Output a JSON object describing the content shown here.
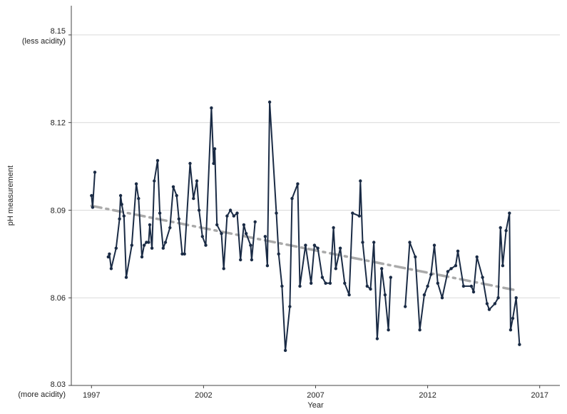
{
  "chart_data": {
    "type": "line",
    "xlabel": "Year",
    "ylabel": "pH measurement",
    "xlim": [
      1996.1,
      2017.9
    ],
    "ylim": [
      8.03,
      8.16
    ],
    "x_ticks": [
      1997,
      2002,
      2007,
      2012,
      2017
    ],
    "y_ticks": [
      8.03,
      8.06,
      8.09,
      8.12,
      8.15
    ],
    "y_tick_labels": [
      "8.03",
      "8.06",
      "8.09",
      "8.12",
      "8.15"
    ],
    "y_tick_sublabels": {
      "8.15": "(less acidity)",
      "8.03": "(more acidity)"
    },
    "grid": "horizontal",
    "colors": {
      "series": "#1a2b45",
      "trend": "#aaaaaa"
    },
    "series": [
      {
        "points": [
          [
            1997.0,
            8.095
          ],
          [
            1997.05,
            8.091
          ],
          [
            1997.15,
            8.103
          ],
          [
            null,
            null
          ],
          [
            1997.75,
            8.074
          ],
          [
            1997.8,
            8.075
          ],
          [
            1997.88,
            8.07
          ],
          [
            1998.1,
            8.077
          ],
          [
            1998.25,
            8.087
          ],
          [
            1998.3,
            8.095
          ],
          [
            1998.35,
            8.092
          ],
          [
            1998.45,
            8.088
          ],
          [
            1998.55,
            8.067
          ],
          [
            1998.8,
            8.078
          ],
          [
            1999.0,
            8.099
          ],
          [
            1999.1,
            8.094
          ],
          [
            1999.25,
            8.074
          ],
          [
            1999.35,
            8.078
          ],
          [
            1999.45,
            8.079
          ],
          [
            1999.55,
            8.079
          ],
          [
            1999.6,
            8.085
          ],
          [
            1999.7,
            8.077
          ],
          [
            1999.8,
            8.1
          ],
          [
            1999.95,
            8.107
          ],
          [
            2000.05,
            8.089
          ],
          [
            2000.2,
            8.077
          ],
          [
            2000.3,
            8.079
          ],
          [
            2000.5,
            8.084
          ],
          [
            2000.65,
            8.098
          ],
          [
            2000.8,
            8.095
          ],
          [
            2000.9,
            8.087
          ],
          [
            2001.05,
            8.075
          ],
          [
            2001.15,
            8.075
          ],
          [
            2001.4,
            8.106
          ],
          [
            2001.55,
            8.094
          ],
          [
            2001.7,
            8.1
          ],
          [
            2001.8,
            8.09
          ],
          [
            2001.95,
            8.081
          ],
          [
            2002.1,
            8.078
          ],
          [
            2002.35,
            8.125
          ],
          [
            2002.45,
            8.106
          ],
          [
            2002.5,
            8.111
          ],
          [
            2002.6,
            8.085
          ],
          [
            2002.8,
            8.082
          ],
          [
            2002.9,
            8.07
          ],
          [
            2003.05,
            8.088
          ],
          [
            2003.2,
            8.09
          ],
          [
            2003.35,
            8.088
          ],
          [
            2003.5,
            8.089
          ],
          [
            2003.65,
            8.073
          ],
          [
            2003.8,
            8.085
          ],
          [
            2003.9,
            8.082
          ],
          [
            2004.1,
            8.078
          ],
          [
            2004.15,
            8.073
          ],
          [
            2004.3,
            8.086
          ],
          [
            null,
            null
          ],
          [
            2004.75,
            8.081
          ],
          [
            2004.85,
            8.071
          ],
          [
            2004.95,
            8.127
          ],
          [
            2005.25,
            8.089
          ],
          [
            2005.35,
            8.075
          ],
          [
            2005.5,
            8.064
          ],
          [
            2005.65,
            8.042
          ],
          [
            2005.85,
            8.057
          ],
          [
            2005.95,
            8.094
          ],
          [
            2006.2,
            8.099
          ],
          [
            2006.3,
            8.064
          ],
          [
            2006.55,
            8.078
          ],
          [
            2006.8,
            8.065
          ],
          [
            2006.95,
            8.078
          ],
          [
            2007.1,
            8.077
          ],
          [
            2007.3,
            8.067
          ],
          [
            2007.45,
            8.065
          ],
          [
            2007.65,
            8.065
          ],
          [
            2007.8,
            8.084
          ],
          [
            2007.9,
            8.07
          ],
          [
            2008.1,
            8.077
          ],
          [
            2008.3,
            8.065
          ],
          [
            2008.5,
            8.061
          ],
          [
            2008.65,
            8.089
          ],
          [
            2008.95,
            8.088
          ],
          [
            2009.0,
            8.1
          ],
          [
            2009.1,
            8.079
          ],
          [
            2009.3,
            8.064
          ],
          [
            2009.45,
            8.063
          ],
          [
            2009.6,
            8.079
          ],
          [
            2009.75,
            8.046
          ],
          [
            2009.95,
            8.07
          ],
          [
            2010.1,
            8.061
          ],
          [
            2010.25,
            8.049
          ],
          [
            2010.35,
            8.067
          ],
          [
            null,
            null
          ],
          [
            2011.0,
            8.057
          ],
          [
            2011.2,
            8.079
          ],
          [
            2011.45,
            8.074
          ],
          [
            2011.65,
            8.049
          ],
          [
            2011.85,
            8.061
          ],
          [
            2012.0,
            8.064
          ],
          [
            2012.15,
            8.068
          ],
          [
            2012.3,
            8.078
          ],
          [
            2012.45,
            8.065
          ],
          [
            2012.65,
            8.06
          ],
          [
            2012.9,
            8.069
          ],
          [
            2013.05,
            8.07
          ],
          [
            2013.25,
            8.071
          ],
          [
            2013.35,
            8.076
          ],
          [
            2013.6,
            8.064
          ],
          [
            2013.95,
            8.064
          ],
          [
            2014.05,
            8.062
          ],
          [
            2014.2,
            8.074
          ],
          [
            2014.45,
            8.067
          ],
          [
            2014.65,
            8.058
          ],
          [
            2014.75,
            8.056
          ],
          [
            2015.0,
            8.058
          ],
          [
            2015.15,
            8.06
          ],
          [
            2015.25,
            8.084
          ],
          [
            2015.35,
            8.071
          ],
          [
            2015.5,
            8.083
          ],
          [
            2015.65,
            8.089
          ],
          [
            2015.7,
            8.049
          ],
          [
            2015.8,
            8.053
          ],
          [
            2015.95,
            8.06
          ],
          [
            2016.1,
            8.044
          ]
        ]
      }
    ],
    "trend_line": {
      "x": [
        1997.0,
        2016.0
      ],
      "y": [
        8.0915,
        8.0625
      ],
      "style": "dashed"
    }
  }
}
